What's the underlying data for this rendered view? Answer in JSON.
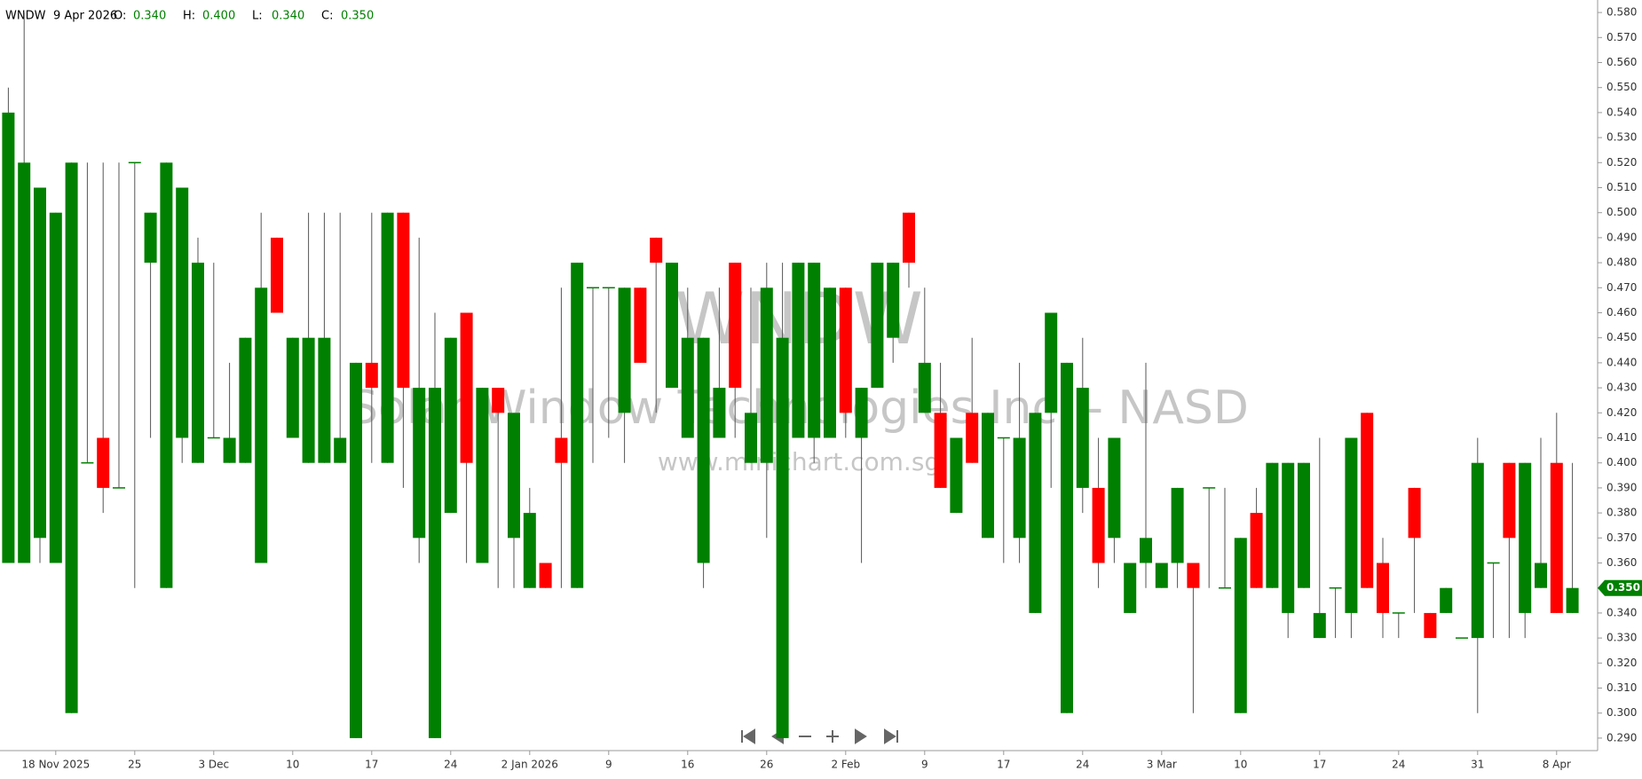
{
  "chart_data": {
    "type": "candlestick",
    "header": {
      "symbol": "WNDW",
      "date": "9 Apr 2026",
      "fields": [
        {
          "name": "O:",
          "value": "0.340"
        },
        {
          "name": "H:",
          "value": "0.400"
        },
        {
          "name": "L:",
          "value": "0.340"
        },
        {
          "name": "C:",
          "value": "0.350"
        }
      ]
    },
    "watermark": {
      "symbol": "WNDW",
      "company": "Solar Window Technologies Inc. - NASD",
      "site": "www.minichart.com.sg"
    },
    "last_price": {
      "value": 0.35,
      "label": "0.350"
    },
    "up_color": "#008000",
    "down_color": "#ff0000",
    "categories": [
      null,
      null,
      null,
      "18 Nov 2025",
      null,
      null,
      null,
      null,
      "25",
      null,
      null,
      null,
      null,
      "3 Dec",
      null,
      null,
      null,
      null,
      "10",
      null,
      null,
      null,
      null,
      "17",
      null,
      null,
      null,
      null,
      "24",
      null,
      null,
      null,
      null,
      "2 Jan 2026",
      null,
      null,
      null,
      null,
      "9",
      null,
      null,
      null,
      null,
      "16",
      null,
      null,
      null,
      null,
      "26",
      null,
      null,
      null,
      null,
      "2 Feb",
      null,
      null,
      null,
      null,
      "9",
      null,
      null,
      null,
      null,
      "17",
      null,
      null,
      null,
      null,
      "24",
      null,
      null,
      null,
      null,
      "3 Mar",
      null,
      null,
      null,
      null,
      "10",
      null,
      null,
      null,
      null,
      "17",
      null,
      null,
      null,
      null,
      "24",
      null,
      null,
      null,
      null,
      "31",
      null,
      null,
      null,
      null,
      "8 Apr",
      null
    ],
    "open": [
      0.36,
      0.36,
      0.37,
      0.36,
      0.3,
      0.4,
      0.41,
      0.39,
      0.52,
      0.48,
      0.35,
      0.41,
      0.4,
      0.41,
      0.4,
      0.4,
      0.36,
      0.49,
      0.41,
      0.4,
      0.4,
      0.4,
      0.29,
      0.44,
      0.4,
      0.5,
      0.37,
      0.29,
      0.38,
      0.46,
      0.36,
      0.43,
      0.37,
      0.35,
      0.36,
      0.41,
      0.35,
      0.47,
      0.47,
      0.42,
      0.47,
      0.49,
      0.43,
      0.41,
      0.36,
      0.41,
      0.48,
      0.4,
      0.4,
      0.29,
      0.41,
      0.41,
      0.41,
      0.47,
      0.41,
      0.43,
      0.45,
      0.5,
      0.42,
      0.42,
      0.38,
      0.42,
      0.37,
      0.41,
      0.37,
      0.34,
      0.42,
      0.3,
      0.39,
      0.39,
      0.37,
      0.34,
      0.36,
      0.35,
      0.36,
      0.36,
      0.39,
      0.35,
      0.3,
      0.38,
      0.35,
      0.34,
      0.35,
      0.33,
      0.35,
      0.34,
      0.42,
      0.36,
      0.34,
      0.39,
      0.34,
      0.34,
      0.33,
      0.33,
      0.36,
      0.4,
      0.34,
      0.35,
      0.4,
      0.34
    ],
    "high": [
      0.55,
      0.58,
      0.51,
      0.5,
      0.52,
      0.52,
      0.52,
      0.52,
      0.52,
      0.5,
      0.52,
      0.51,
      0.49,
      0.48,
      0.44,
      0.45,
      0.5,
      0.49,
      0.45,
      0.5,
      0.5,
      0.5,
      0.44,
      0.5,
      0.5,
      0.5,
      0.49,
      0.46,
      0.45,
      0.46,
      0.43,
      0.43,
      0.42,
      0.39,
      0.36,
      0.47,
      0.48,
      0.47,
      0.47,
      0.47,
      0.47,
      0.49,
      0.48,
      0.47,
      0.45,
      0.47,
      0.48,
      0.47,
      0.48,
      0.48,
      0.48,
      0.48,
      0.47,
      0.47,
      0.43,
      0.48,
      0.48,
      0.5,
      0.47,
      0.44,
      0.41,
      0.45,
      0.42,
      0.41,
      0.44,
      0.42,
      0.46,
      0.44,
      0.45,
      0.41,
      0.41,
      0.36,
      0.44,
      0.36,
      0.39,
      0.36,
      0.39,
      0.39,
      0.37,
      0.39,
      0.4,
      0.4,
      0.4,
      0.41,
      0.35,
      0.41,
      0.42,
      0.37,
      0.34,
      0.39,
      0.34,
      0.35,
      0.33,
      0.41,
      0.36,
      0.4,
      0.4,
      0.41,
      0.42,
      0.4
    ],
    "low": [
      0.36,
      0.36,
      0.36,
      0.36,
      0.3,
      0.4,
      0.38,
      0.39,
      0.35,
      0.41,
      0.35,
      0.4,
      0.4,
      0.41,
      0.4,
      0.4,
      0.36,
      0.46,
      0.41,
      0.4,
      0.4,
      0.4,
      0.29,
      0.4,
      0.4,
      0.39,
      0.36,
      0.29,
      0.38,
      0.36,
      0.36,
      0.35,
      0.35,
      0.35,
      0.35,
      0.35,
      0.35,
      0.4,
      0.41,
      0.4,
      0.44,
      0.42,
      0.43,
      0.41,
      0.35,
      0.41,
      0.41,
      0.4,
      0.37,
      0.29,
      0.41,
      0.4,
      0.41,
      0.41,
      0.36,
      0.43,
      0.44,
      0.47,
      0.42,
      0.39,
      0.38,
      0.4,
      0.37,
      0.36,
      0.36,
      0.34,
      0.39,
      0.3,
      0.38,
      0.35,
      0.36,
      0.34,
      0.35,
      0.35,
      0.35,
      0.3,
      0.35,
      0.35,
      0.3,
      0.35,
      0.35,
      0.33,
      0.35,
      0.33,
      0.33,
      0.33,
      0.35,
      0.33,
      0.33,
      0.34,
      0.33,
      0.34,
      0.33,
      0.3,
      0.33,
      0.33,
      0.33,
      0.35,
      0.34,
      0.34
    ],
    "close": [
      0.54,
      0.52,
      0.51,
      0.5,
      0.52,
      0.4,
      0.39,
      0.39,
      0.52,
      0.5,
      0.52,
      0.51,
      0.48,
      0.41,
      0.41,
      0.45,
      0.47,
      0.46,
      0.45,
      0.45,
      0.45,
      0.41,
      0.44,
      0.43,
      0.5,
      0.43,
      0.43,
      0.43,
      0.45,
      0.4,
      0.43,
      0.42,
      0.42,
      0.38,
      0.35,
      0.4,
      0.48,
      0.47,
      0.47,
      0.47,
      0.44,
      0.48,
      0.48,
      0.45,
      0.45,
      0.43,
      0.43,
      0.42,
      0.47,
      0.45,
      0.48,
      0.48,
      0.47,
      0.42,
      0.43,
      0.48,
      0.48,
      0.48,
      0.44,
      0.39,
      0.41,
      0.4,
      0.42,
      0.41,
      0.41,
      0.42,
      0.46,
      0.44,
      0.43,
      0.36,
      0.41,
      0.36,
      0.37,
      0.36,
      0.39,
      0.35,
      0.39,
      0.35,
      0.37,
      0.35,
      0.4,
      0.4,
      0.4,
      0.34,
      0.35,
      0.41,
      0.35,
      0.34,
      0.34,
      0.37,
      0.33,
      0.35,
      0.33,
      0.4,
      0.36,
      0.37,
      0.4,
      0.36,
      0.34,
      0.35
    ],
    "ylim": [
      0.285,
      0.585
    ],
    "yticks": [
      {
        "value": 0.29,
        "label": "0.290"
      },
      {
        "value": 0.3,
        "label": "0.300"
      },
      {
        "value": 0.31,
        "label": "0.310"
      },
      {
        "value": 0.32,
        "label": "0.320"
      },
      {
        "value": 0.33,
        "label": "0.330"
      },
      {
        "value": 0.34,
        "label": "0.340"
      },
      {
        "value": 0.35,
        "label": "0.350"
      },
      {
        "value": 0.36,
        "label": "0.360"
      },
      {
        "value": 0.37,
        "label": "0.370"
      },
      {
        "value": 0.38,
        "label": "0.380"
      },
      {
        "value": 0.39,
        "label": "0.390"
      },
      {
        "value": 0.4,
        "label": "0.400"
      },
      {
        "value": 0.41,
        "label": "0.410"
      },
      {
        "value": 0.42,
        "label": "0.420"
      },
      {
        "value": 0.43,
        "label": "0.430"
      },
      {
        "value": 0.44,
        "label": "0.440"
      },
      {
        "value": 0.45,
        "label": "0.450"
      },
      {
        "value": 0.46,
        "label": "0.460"
      },
      {
        "value": 0.47,
        "label": "0.470"
      },
      {
        "value": 0.48,
        "label": "0.480"
      },
      {
        "value": 0.49,
        "label": "0.490"
      },
      {
        "value": 0.5,
        "label": "0.500"
      },
      {
        "value": 0.51,
        "label": "0.510"
      },
      {
        "value": 0.52,
        "label": "0.520"
      },
      {
        "value": 0.53,
        "label": "0.530"
      },
      {
        "value": 0.54,
        "label": "0.540"
      },
      {
        "value": 0.55,
        "label": "0.550"
      },
      {
        "value": 0.56,
        "label": "0.560"
      },
      {
        "value": 0.57,
        "label": "0.570"
      },
      {
        "value": 0.58,
        "label": "0.580"
      }
    ]
  }
}
